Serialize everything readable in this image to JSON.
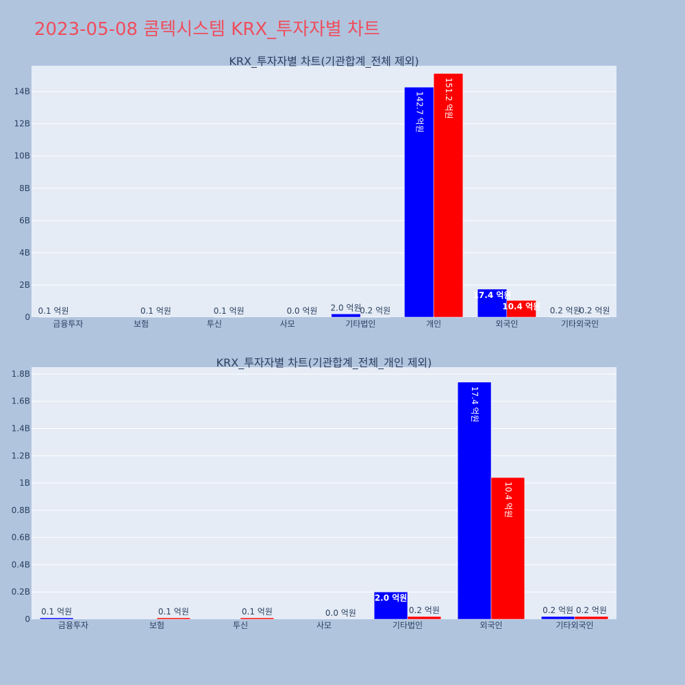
{
  "page": {
    "title": "2023-05-08 콤텍시스템 KRX_투자자별 차트"
  },
  "colors": {
    "page_bg": "#b0c4de",
    "plot_bg": "#e5ecf6",
    "grid": "#ffffff",
    "title": "#ef4d5c",
    "text": "#2a3f5f",
    "buy": "#0000ff",
    "sell": "#ff0000"
  },
  "chart_data": [
    {
      "type": "bar",
      "title": "KRX_투자자별 차트(기관합계_전체 제외)",
      "categories": [
        "금융투자",
        "보험",
        "투신",
        "사모",
        "기타법인",
        "개인",
        "외국인",
        "기타외국인"
      ],
      "ylim": [
        0,
        15600000000
      ],
      "yticks": [
        0,
        2000000000,
        4000000000,
        6000000000,
        8000000000,
        10000000000,
        12000000000,
        14000000000
      ],
      "yticklabels": [
        "0",
        "2B",
        "4B",
        "6B",
        "8B",
        "10B",
        "12B",
        "14B"
      ],
      "grid": true,
      "series": [
        {
          "color": "#0000ff",
          "values": [
            10000000,
            0,
            0,
            0,
            200000000,
            14270000000,
            1740000000,
            20000000
          ],
          "labels": [
            "0.1 억원",
            "",
            "",
            "",
            "2.0 억원",
            "142.7 억원",
            "17.4 억원",
            "0.2 억원"
          ]
        },
        {
          "color": "#ff0000",
          "values": [
            0,
            10000000,
            10000000,
            0,
            20000000,
            15120000000,
            1040000000,
            20000000
          ],
          "labels": [
            "",
            "0.1 억원",
            "0.1 억원",
            "0.0 억원",
            "0.2 억원",
            "151.2 억원",
            "10.4 억원",
            "0.2 억원"
          ]
        }
      ]
    },
    {
      "type": "bar",
      "title": "KRX_투자자별 차트(기관합계_전체_개인 제외)",
      "categories": [
        "금융투자",
        "보험",
        "투신",
        "사모",
        "기타법인",
        "외국인",
        "기타외국인"
      ],
      "ylim": [
        0,
        1850000000
      ],
      "yticks": [
        0,
        200000000,
        400000000,
        600000000,
        800000000,
        1000000000,
        1200000000,
        1400000000,
        1600000000,
        1800000000
      ],
      "yticklabels": [
        "0",
        "0.2B",
        "0.4B",
        "0.6B",
        "0.8B",
        "1B",
        "1.2B",
        "1.4B",
        "1.6B",
        "1.8B"
      ],
      "grid": true,
      "series": [
        {
          "color": "#0000ff",
          "values": [
            10000000,
            0,
            0,
            0,
            200000000,
            1740000000,
            20000000
          ],
          "labels": [
            "0.1 억원",
            "",
            "",
            "",
            "2.0 억원",
            "17.4 억원",
            "0.2 억원"
          ]
        },
        {
          "color": "#ff0000",
          "values": [
            0,
            10000000,
            10000000,
            0,
            20000000,
            1040000000,
            20000000
          ],
          "labels": [
            "",
            "0.1 억원",
            "0.1 억원",
            "0.0 억원",
            "0.2 억원",
            "10.4 억원",
            "0.2 억원"
          ]
        }
      ]
    }
  ]
}
